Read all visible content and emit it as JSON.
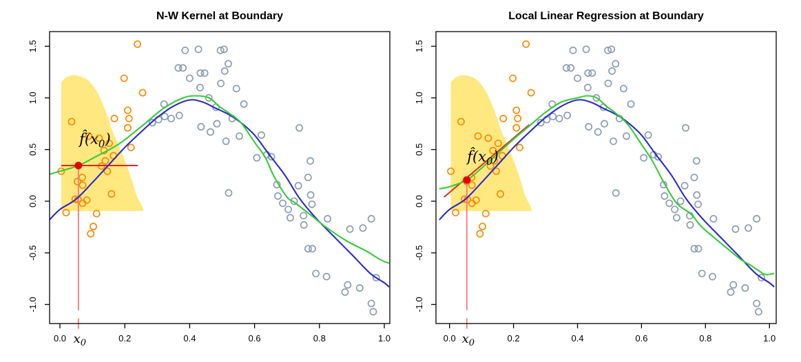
{
  "chart_data": {
    "type": "scatter",
    "grid": false,
    "legend": null,
    "x_tick_labels": [
      "0.0",
      "0.2",
      "0.4",
      "0.6",
      "0.8",
      "1.0"
    ],
    "y_tick_labels": [
      "-1.0",
      "-0.5",
      "0.0",
      "0.5",
      "1.0",
      "1.5"
    ],
    "x_ticks": [
      0.0,
      0.2,
      0.4,
      0.6,
      0.8,
      1.0
    ],
    "y_ticks": [
      -1.0,
      -0.5,
      0.0,
      0.5,
      1.0,
      1.5
    ],
    "xlim": [
      -0.032,
      1.015
    ],
    "ylim": [
      -1.18,
      1.64
    ],
    "colors": {
      "true_curve": "#2828d2",
      "fit_curve": "#33cc33",
      "window_points": "#ff8800",
      "outside_points": "#8b9db2",
      "kernel_region": "#ffe880",
      "marker": "#e60000",
      "red_line": "#e62222",
      "drop_line": "#f57e7e",
      "axis": "#000000"
    },
    "kernel_base_y": -0.095,
    "kernel_region": [
      [
        0.004,
        1.15
      ],
      [
        0.02,
        1.2
      ],
      [
        0.045,
        1.22
      ],
      [
        0.07,
        1.2
      ],
      [
        0.09,
        1.16
      ],
      [
        0.116,
        1.05
      ],
      [
        0.14,
        0.88
      ],
      [
        0.162,
        0.68
      ],
      [
        0.18,
        0.55
      ],
      [
        0.197,
        0.42
      ],
      [
        0.218,
        0.24
      ],
      [
        0.236,
        0.06
      ],
      [
        0.252,
        -0.04
      ],
      [
        0.258,
        -0.095
      ]
    ],
    "points_in_window": [
      [
        0.004,
        0.29
      ],
      [
        0.019,
        -0.11
      ],
      [
        0.036,
        0.77
      ],
      [
        0.047,
        0.02
      ],
      [
        0.056,
        0.015
      ],
      [
        0.054,
        0.19
      ],
      [
        0.069,
        0.23
      ],
      [
        0.07,
        0.155
      ],
      [
        0.07,
        -0.02
      ],
      [
        0.083,
        0.01
      ],
      [
        0.089,
        0.63
      ],
      [
        0.095,
        -0.315
      ],
      [
        0.103,
        -0.245
      ],
      [
        0.113,
        -0.12
      ],
      [
        0.121,
        0.61
      ],
      [
        0.128,
        0.34
      ],
      [
        0.136,
        0.49
      ],
      [
        0.14,
        0.39
      ],
      [
        0.146,
        0.29
      ],
      [
        0.152,
        0.56
      ],
      [
        0.159,
        0.07
      ],
      [
        0.165,
        0.44
      ],
      [
        0.168,
        0.8
      ],
      [
        0.198,
        1.19
      ],
      [
        0.209,
        0.88
      ],
      [
        0.213,
        0.8
      ],
      [
        0.209,
        0.71
      ],
      [
        0.219,
        0.52
      ],
      [
        0.239,
        1.52
      ],
      [
        0.255,
        1.05
      ]
    ],
    "points_outside": [
      [
        0.285,
        0.76
      ],
      [
        0.304,
        0.79
      ],
      [
        0.321,
        0.94
      ],
      [
        0.323,
        0.82
      ],
      [
        0.343,
        0.8
      ],
      [
        0.365,
        1.29
      ],
      [
        0.368,
        0.83
      ],
      [
        0.379,
        1.29
      ],
      [
        0.386,
        1.46
      ],
      [
        0.4,
        1.19
      ],
      [
        0.427,
        1.47
      ],
      [
        0.432,
        1.1
      ],
      [
        0.433,
        1.24
      ],
      [
        0.446,
        1.24
      ],
      [
        0.435,
        0.72
      ],
      [
        0.459,
        1.0
      ],
      [
        0.464,
        0.67
      ],
      [
        0.481,
        0.91
      ],
      [
        0.484,
        0.75
      ],
      [
        0.495,
        1.46
      ],
      [
        0.506,
        1.47
      ],
      [
        0.519,
        1.33
      ],
      [
        0.508,
        1.26
      ],
      [
        0.496,
        1.14
      ],
      [
        0.544,
        1.09
      ],
      [
        0.567,
        0.94
      ],
      [
        0.512,
        0.58
      ],
      [
        0.52,
        0.08
      ],
      [
        0.531,
        0.8
      ],
      [
        0.553,
        0.63
      ],
      [
        0.607,
        0.42
      ],
      [
        0.621,
        0.64
      ],
      [
        0.638,
        0.45
      ],
      [
        0.652,
        0.43
      ],
      [
        0.669,
        0.16
      ],
      [
        0.672,
        0.05
      ],
      [
        0.687,
        -0.02
      ],
      [
        0.704,
        -0.08
      ],
      [
        0.71,
        -0.16
      ],
      [
        0.722,
        0.0
      ],
      [
        0.735,
        0.15
      ],
      [
        0.738,
        0.71
      ],
      [
        0.751,
        -0.14
      ],
      [
        0.752,
        -0.23
      ],
      [
        0.765,
        0.23
      ],
      [
        0.765,
        -0.46
      ],
      [
        0.778,
        -0.46
      ],
      [
        0.772,
        0.39
      ],
      [
        0.773,
        0.06
      ],
      [
        0.777,
        -0.03
      ],
      [
        0.789,
        -0.7
      ],
      [
        0.822,
        -0.73
      ],
      [
        0.825,
        -0.17
      ],
      [
        0.879,
        -0.88
      ],
      [
        0.887,
        -0.81
      ],
      [
        0.894,
        -0.27
      ],
      [
        0.924,
        -0.84
      ],
      [
        0.934,
        -0.26
      ],
      [
        0.96,
        -0.99
      ],
      [
        0.966,
        -1.07
      ],
      [
        0.96,
        -0.17
      ],
      [
        0.975,
        -0.74
      ]
    ],
    "true_curve": [
      [
        -0.032,
        -0.18
      ],
      [
        0.0,
        -0.08
      ],
      [
        0.05,
        0.02
      ],
      [
        0.1,
        0.18
      ],
      [
        0.15,
        0.35
      ],
      [
        0.2,
        0.52
      ],
      [
        0.25,
        0.67
      ],
      [
        0.3,
        0.81
      ],
      [
        0.35,
        0.92
      ],
      [
        0.4,
        0.98
      ],
      [
        0.44,
        0.96
      ],
      [
        0.48,
        0.9
      ],
      [
        0.52,
        0.84
      ],
      [
        0.558,
        0.76
      ],
      [
        0.6,
        0.64
      ],
      [
        0.643,
        0.46
      ],
      [
        0.694,
        0.25
      ],
      [
        0.738,
        0.03
      ],
      [
        0.788,
        -0.16
      ],
      [
        0.844,
        -0.34
      ],
      [
        0.901,
        -0.52
      ],
      [
        0.957,
        -0.7
      ],
      [
        1.0,
        -0.79
      ],
      [
        1.015,
        -0.83
      ]
    ],
    "panels": [
      {
        "title": "N-W Kernel at Boundary",
        "x0": 0.057,
        "fhat": 0.345,
        "estimate_label": {
          "pre": "f̂(x",
          "sub": "0",
          "post": ")"
        },
        "estimate_label_pos": [
          0.108,
          0.6
        ],
        "x0_label": {
          "base": "x",
          "sub": "0"
        },
        "mean_line": {
          "y": 0.345,
          "x1": 0.004,
          "x2": 0.24
        },
        "fit_segment": null,
        "fit_curve": [
          [
            -0.032,
            0.26
          ],
          [
            0.0,
            0.29
          ],
          [
            0.057,
            0.345
          ],
          [
            0.11,
            0.43
          ],
          [
            0.18,
            0.55
          ],
          [
            0.25,
            0.72
          ],
          [
            0.32,
            0.9
          ],
          [
            0.38,
            1.0
          ],
          [
            0.42,
            1.02
          ],
          [
            0.46,
            1.0
          ],
          [
            0.49,
            0.92
          ],
          [
            0.52,
            0.855
          ],
          [
            0.558,
            0.76
          ],
          [
            0.6,
            0.57
          ],
          [
            0.632,
            0.43
          ],
          [
            0.66,
            0.24
          ],
          [
            0.7,
            0.04
          ],
          [
            0.724,
            -0.014
          ],
          [
            0.774,
            -0.136
          ],
          [
            0.823,
            -0.258
          ],
          [
            0.887,
            -0.39
          ],
          [
            0.943,
            -0.48
          ],
          [
            0.99,
            -0.57
          ],
          [
            1.015,
            -0.6
          ]
        ]
      },
      {
        "title": "Local Linear Regression at Boundary",
        "x0": 0.054,
        "fhat": 0.205,
        "estimate_label": {
          "pre": "f̂(x",
          "sub": "0",
          "post": ")"
        },
        "estimate_label_pos": [
          0.104,
          0.43
        ],
        "x0_label": {
          "base": "x",
          "sub": "0"
        },
        "mean_line": null,
        "fit_segment": {
          "x1": -0.017,
          "y1": 0.04,
          "x2": 0.249,
          "y2": 0.74
        },
        "fit_curve": [
          [
            -0.032,
            0.12
          ],
          [
            0.0,
            0.14
          ],
          [
            0.054,
            0.205
          ],
          [
            0.1,
            0.32
          ],
          [
            0.15,
            0.46
          ],
          [
            0.2,
            0.6
          ],
          [
            0.25,
            0.73
          ],
          [
            0.3,
            0.86
          ],
          [
            0.35,
            0.96
          ],
          [
            0.4,
            1.0
          ],
          [
            0.43,
            1.02
          ],
          [
            0.46,
            1.0
          ],
          [
            0.49,
            0.92
          ],
          [
            0.52,
            0.85
          ],
          [
            0.558,
            0.74
          ],
          [
            0.6,
            0.55
          ],
          [
            0.632,
            0.4
          ],
          [
            0.672,
            0.17
          ],
          [
            0.71,
            -0.02
          ],
          [
            0.755,
            -0.125
          ],
          [
            0.787,
            -0.245
          ],
          [
            0.834,
            -0.37
          ],
          [
            0.877,
            -0.48
          ],
          [
            0.913,
            -0.57
          ],
          [
            0.941,
            -0.62
          ],
          [
            0.97,
            -0.68
          ],
          [
            0.988,
            -0.71
          ],
          [
            1.015,
            -0.7
          ]
        ]
      }
    ]
  }
}
